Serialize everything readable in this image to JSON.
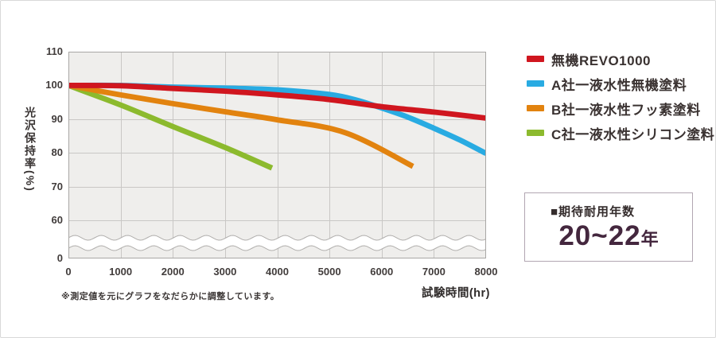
{
  "card": {
    "background": "#ffffff",
    "border_color": "#d8d8d8"
  },
  "chart_data": {
    "type": "line",
    "title": "",
    "xlabel": "試験時間(hr)",
    "ylabel": "光沢保持率(%)",
    "footnote": "※測定値を元にグラフをなだらかに調整しています。",
    "xlim": [
      0,
      8000
    ],
    "ylim": [
      60,
      110
    ],
    "y_axis_break": "wavy break band between 60 and 0",
    "x_ticks": [
      0,
      1000,
      2000,
      3000,
      4000,
      5000,
      6000,
      7000,
      8000
    ],
    "y_ticks": [
      110,
      100,
      90,
      80,
      70,
      60,
      0
    ],
    "grid": true,
    "legend_position": "right",
    "plot_bg": "#efeeec",
    "grid_color": "#c9c7c5",
    "border_color": "#a9a7a5",
    "series": [
      {
        "name": "無機REVO1000",
        "color": "#d0161f",
        "points": [
          [
            0,
            100
          ],
          [
            1000,
            99.9
          ],
          [
            2000,
            99.1
          ],
          [
            3000,
            98.3
          ],
          [
            4000,
            97.2
          ],
          [
            5000,
            95.8
          ],
          [
            6000,
            93.7
          ],
          [
            7000,
            92.1
          ],
          [
            8000,
            90.3
          ]
        ]
      },
      {
        "name": "A社一液水性無機塗料",
        "color": "#29abe2",
        "points": [
          [
            0,
            100
          ],
          [
            1000,
            100
          ],
          [
            2000,
            99.5
          ],
          [
            3000,
            99.2
          ],
          [
            4000,
            98.7
          ],
          [
            5000,
            97.3
          ],
          [
            5500,
            95.7
          ],
          [
            6000,
            93.3
          ],
          [
            6500,
            90.6
          ],
          [
            7000,
            87.3
          ],
          [
            7500,
            83.8
          ],
          [
            8000,
            79.8
          ]
        ]
      },
      {
        "name": "B社一液水性フッ素塗料",
        "color": "#e2830f",
        "points": [
          [
            0,
            100
          ],
          [
            1000,
            97.2
          ],
          [
            2000,
            94.6
          ],
          [
            3000,
            92.2
          ],
          [
            4000,
            89.8
          ],
          [
            5300,
            86
          ],
          [
            6600,
            76
          ]
        ]
      },
      {
        "name": "C社一液水性シリコン塗料",
        "color": "#8cba2e",
        "points": [
          [
            0,
            100
          ],
          [
            1000,
            94.2
          ],
          [
            2000,
            87.8
          ],
          [
            3000,
            81.6
          ],
          [
            3900,
            75.5
          ]
        ]
      }
    ]
  },
  "info_box": {
    "heading": "■期待耐用年数",
    "value_main": "20~22",
    "value_suffix": "年",
    "value_color": "#44273e"
  }
}
